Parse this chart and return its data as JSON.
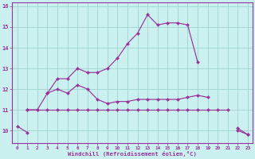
{
  "background_color": "#caf0f0",
  "grid_color": "#99cccc",
  "line_color": "#993399",
  "xlabel": "Windchill (Refroidissement éolien,°C)",
  "x_hours": [
    0,
    1,
    2,
    3,
    4,
    5,
    6,
    7,
    8,
    9,
    10,
    11,
    12,
    13,
    14,
    15,
    16,
    17,
    18,
    19,
    20,
    21,
    22,
    23
  ],
  "line1": [
    10.2,
    9.9,
    null,
    11.8,
    12.5,
    12.5,
    13.0,
    12.8,
    12.8,
    13.0,
    13.5,
    14.2,
    14.7,
    15.6,
    15.1,
    15.2,
    15.2,
    15.1,
    13.3,
    null,
    null,
    null,
    10.0,
    9.8
  ],
  "line2": [
    null,
    11.0,
    11.0,
    11.8,
    12.0,
    11.8,
    12.2,
    12.0,
    11.5,
    11.3,
    11.4,
    11.4,
    11.5,
    11.5,
    11.5,
    11.5,
    11.5,
    11.6,
    11.7,
    11.6,
    null,
    null,
    10.1,
    9.8
  ],
  "line3": [
    null,
    11.0,
    11.0,
    11.0,
    11.0,
    11.0,
    11.0,
    11.0,
    11.0,
    11.0,
    11.0,
    11.0,
    11.0,
    11.0,
    11.0,
    11.0,
    11.0,
    11.0,
    11.0,
    11.0,
    11.0,
    11.0,
    null,
    null
  ],
  "ylim": [
    9.4,
    16.2
  ],
  "yticks": [
    10,
    11,
    12,
    13,
    14,
    15,
    16
  ],
  "xlim": [
    -0.5,
    23.5
  ]
}
